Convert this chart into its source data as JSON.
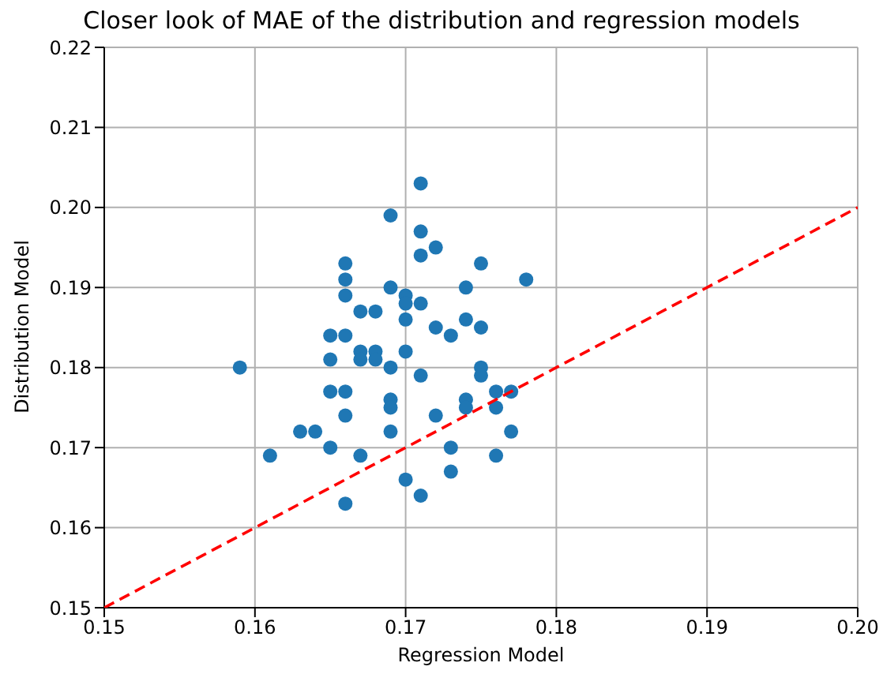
{
  "chart_data": {
    "type": "scatter",
    "title": "Closer look of MAE of the distribution and regression models",
    "xlabel": "Regression Model",
    "ylabel": "Distribution Model",
    "xlim": [
      0.15,
      0.2
    ],
    "xticks": [
      0.15,
      0.16,
      0.17,
      0.18,
      0.19,
      {
        "value": 0.2,
        "label": "0.20"
      }
    ],
    "ylim": [
      0.15,
      0.22
    ],
    "yticks": [
      0.15,
      0.16,
      0.17,
      0.18,
      0.19,
      {
        "value": 0.2,
        "label": "0.20"
      },
      0.21,
      0.22
    ],
    "grid": true,
    "marker": "circle",
    "series": [
      {
        "color": "#1f77b4",
        "x": [
          0.159,
          0.161,
          0.163,
          0.164,
          0.165,
          0.165,
          0.165,
          0.165,
          0.166,
          0.166,
          0.166,
          0.166,
          0.166,
          0.166,
          0.166,
          0.167,
          0.167,
          0.167,
          0.167,
          0.168,
          0.168,
          0.168,
          0.169,
          0.169,
          0.169,
          0.169,
          0.169,
          0.169,
          0.17,
          0.17,
          0.17,
          0.17,
          0.17,
          0.171,
          0.171,
          0.171,
          0.171,
          0.171,
          0.171,
          0.172,
          0.172,
          0.172,
          0.173,
          0.173,
          0.173,
          0.174,
          0.174,
          0.174,
          0.174,
          0.175,
          0.175,
          0.175,
          0.175,
          0.176,
          0.176,
          0.176,
          0.177,
          0.177,
          0.178
        ],
        "values": [
          0.18,
          0.169,
          0.172,
          0.172,
          0.184,
          0.181,
          0.177,
          0.17,
          0.193,
          0.191,
          0.189,
          0.184,
          0.177,
          0.174,
          0.163,
          0.187,
          0.182,
          0.181,
          0.169,
          0.187,
          0.182,
          0.181,
          0.199,
          0.19,
          0.18,
          0.176,
          0.175,
          0.172,
          0.189,
          0.188,
          0.186,
          0.182,
          0.166,
          0.203,
          0.197,
          0.194,
          0.188,
          0.179,
          0.164,
          0.195,
          0.185,
          0.174,
          0.184,
          0.17,
          0.167,
          0.19,
          0.186,
          0.176,
          0.175,
          0.193,
          0.185,
          0.18,
          0.179,
          0.177,
          0.175,
          0.169,
          0.177,
          0.172,
          0.191
        ]
      },
      {
        "type": "line",
        "color": "#ff0000",
        "line_style": "dashed",
        "marker": "none",
        "x": [
          0.15,
          0.2
        ],
        "values": [
          0.15,
          0.2
        ]
      }
    ]
  }
}
